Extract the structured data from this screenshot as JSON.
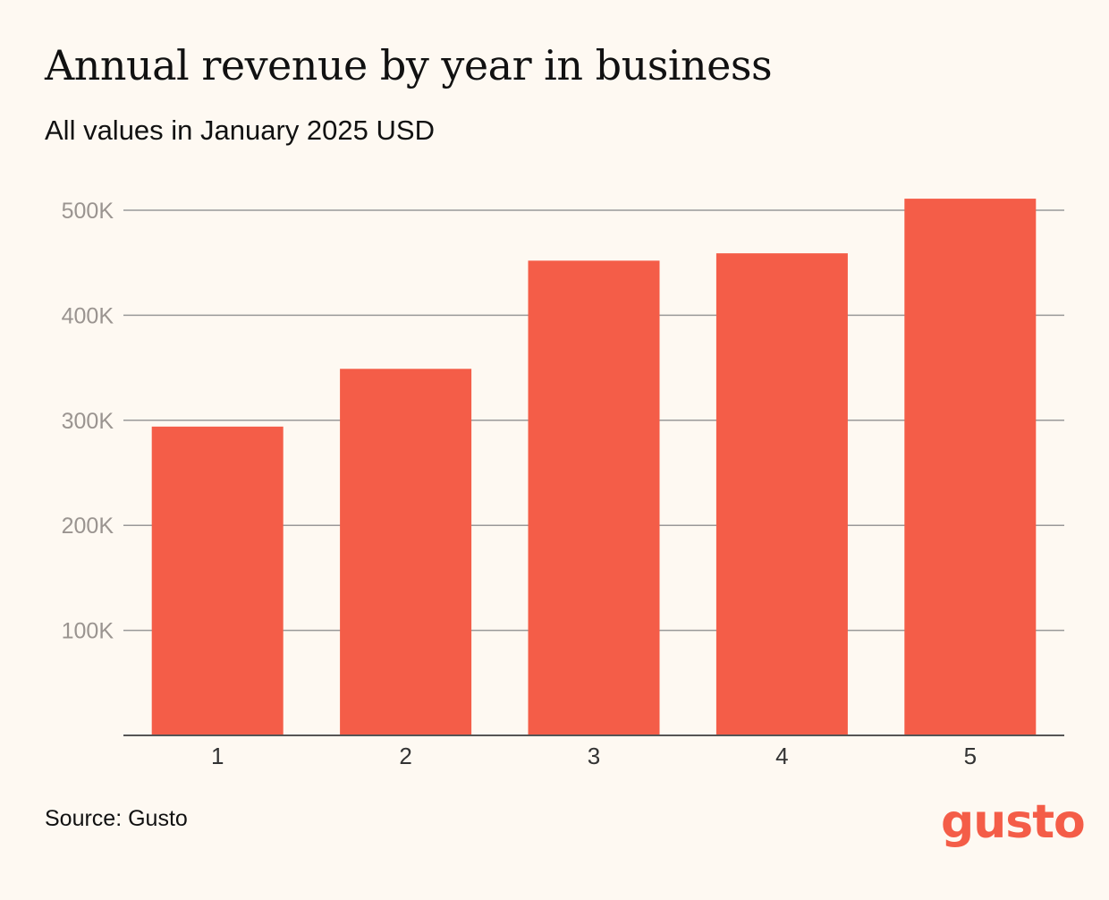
{
  "colors": {
    "background": "#fef9f2",
    "bar": "#f45d48",
    "gridline": "#999999",
    "axis": "#555555",
    "tick_label": "#9a9490",
    "text": "#111111",
    "brand": "#f45d48"
  },
  "chart_data": {
    "type": "bar",
    "title": "Annual revenue by year in business",
    "subtitle": "All values in January 2025 USD",
    "categories": [
      "1",
      "2",
      "3",
      "4",
      "5"
    ],
    "values": [
      294000,
      349000,
      452000,
      459000,
      511000
    ],
    "ylim": [
      0,
      500000
    ],
    "y_ticks": [
      100000,
      200000,
      300000,
      400000,
      500000
    ],
    "y_tick_labels": [
      "100K",
      "200K",
      "300K",
      "400K",
      "500K"
    ],
    "grid": true,
    "legend": "none"
  },
  "source": "Source: Gusto",
  "logo_text": "gusto"
}
